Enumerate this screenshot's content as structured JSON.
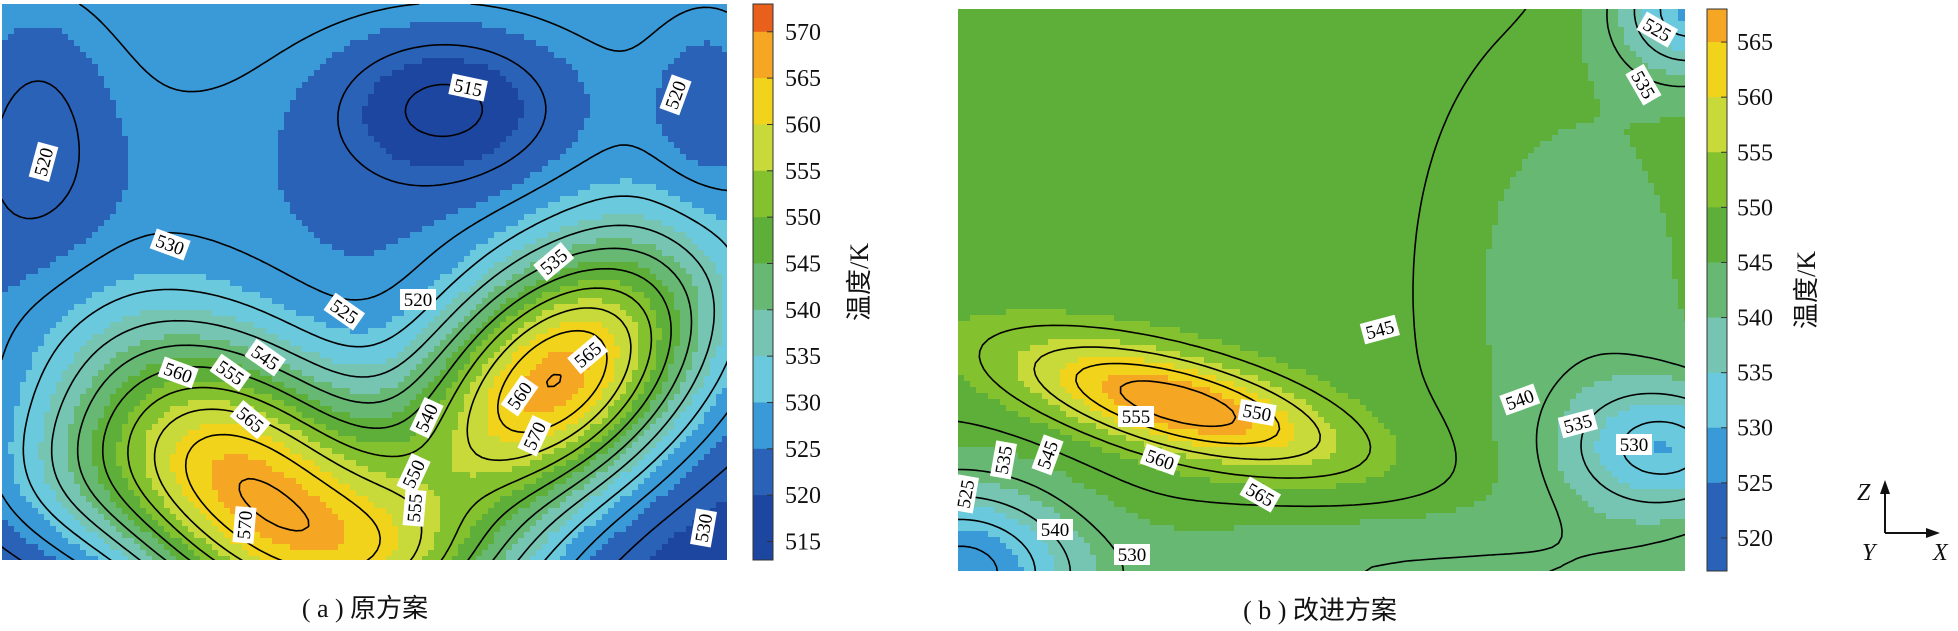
{
  "chart_data": [
    {
      "type": "heatmap",
      "caption": "( a ) 原方案",
      "colorbar_label": "温度/K",
      "colorbar_ticks": [
        570,
        565,
        560,
        555,
        550,
        545,
        540,
        535,
        530,
        525,
        520,
        515
      ],
      "colorbar_range": [
        513,
        573
      ],
      "contour_labels": [
        "515",
        "520",
        "520",
        "520",
        "525",
        "530",
        "535",
        "540",
        "545",
        "550",
        "555",
        "555",
        "560",
        "560",
        "565",
        "565",
        "570",
        "570",
        "530"
      ],
      "hotspots": [
        {
          "name": "left-hot",
          "max_value": 572,
          "position": "lower-left"
        },
        {
          "name": "right-hot",
          "max_value": 572,
          "position": "lower-right"
        },
        {
          "name": "cold-center",
          "min_value": 514,
          "position": "upper-center"
        }
      ]
    },
    {
      "type": "heatmap",
      "caption": "( b ) 改进方案",
      "colorbar_label": "温度/K",
      "colorbar_ticks": [
        565,
        560,
        555,
        550,
        545,
        540,
        535,
        530,
        525,
        520
      ],
      "colorbar_range": [
        517,
        568
      ],
      "contour_labels": [
        "525",
        "535",
        "545",
        "540",
        "535",
        "530",
        "525",
        "535",
        "545",
        "540",
        "530",
        "555",
        "550",
        "560",
        "565"
      ],
      "hotspots": [
        {
          "name": "hot-spot",
          "max_value": 567,
          "position": "lower-center"
        },
        {
          "name": "cold-corner-right",
          "min_value": 527,
          "position": "lower-right"
        },
        {
          "name": "cold-corner-left",
          "min_value": 522,
          "position": "lower-left"
        }
      ]
    }
  ],
  "axis_triad": {
    "z": "Z",
    "y": "Y",
    "x": "X"
  }
}
